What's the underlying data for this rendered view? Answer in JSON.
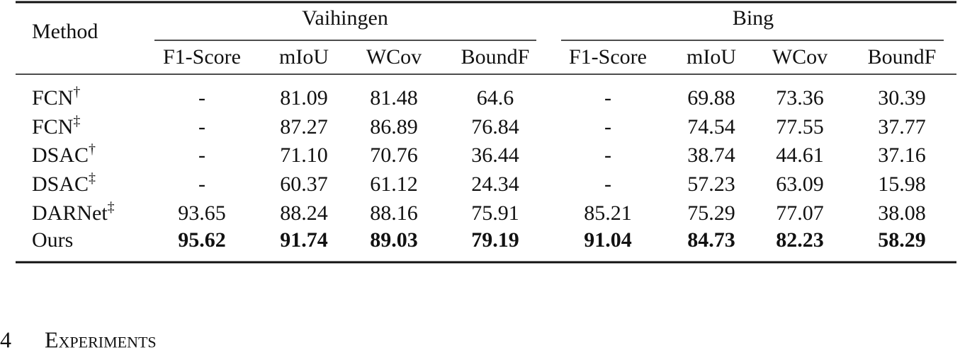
{
  "table": {
    "header": {
      "method": "Method",
      "groups": [
        {
          "label": "Vaihingen",
          "columns": [
            "F1-Score",
            "mIoU",
            "WCov",
            "BoundF"
          ]
        },
        {
          "label": "Bing",
          "columns": [
            "F1-Score",
            "mIoU",
            "WCov",
            "BoundF"
          ]
        }
      ]
    },
    "rows": [
      {
        "method": "FCN",
        "mark": "†",
        "cells": [
          "-",
          "81.09",
          "81.48",
          "64.6",
          "-",
          "69.88",
          "73.36",
          "30.39"
        ]
      },
      {
        "method": "FCN",
        "mark": "‡",
        "cells": [
          "-",
          "87.27",
          "86.89",
          "76.84",
          "-",
          "74.54",
          "77.55",
          "37.77"
        ]
      },
      {
        "method": "DSAC",
        "mark": "†",
        "cells": [
          "-",
          "71.10",
          "70.76",
          "36.44",
          "-",
          "38.74",
          "44.61",
          "37.16"
        ]
      },
      {
        "method": "DSAC",
        "mark": "‡",
        "cells": [
          "-",
          "60.37",
          "61.12",
          "24.34",
          "-",
          "57.23",
          "63.09",
          "15.98"
        ]
      },
      {
        "method": "DARNet",
        "mark": "‡",
        "cells": [
          "93.65",
          "88.24",
          "88.16",
          "75.91",
          "85.21",
          "75.29",
          "77.07",
          "38.08"
        ]
      },
      {
        "method": "Ours",
        "cells": [
          "95.62",
          "91.74",
          "89.03",
          "79.19",
          "91.04",
          "84.73",
          "82.23",
          "58.29"
        ]
      }
    ],
    "bold_row": 5
  },
  "section": {
    "number": "4",
    "title": "Experiments"
  }
}
